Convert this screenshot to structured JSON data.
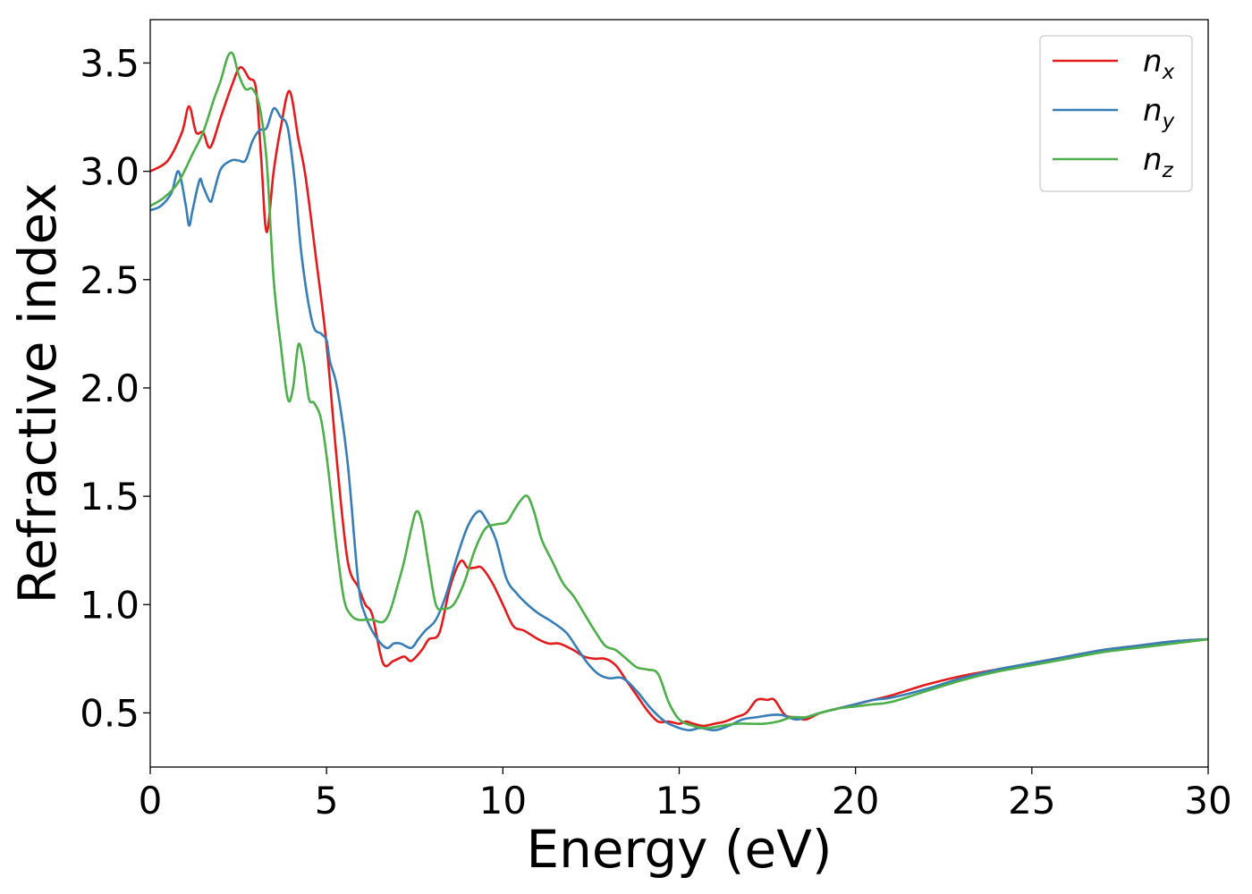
{
  "chart_data": {
    "type": "line",
    "title": "",
    "xlabel": "Energy (eV)",
    "ylabel": "Refractive index",
    "xlim": [
      0,
      30
    ],
    "ylim": [
      0.25,
      3.7
    ],
    "xticks": [
      0,
      5,
      10,
      15,
      20,
      25,
      30
    ],
    "xtick_labels": [
      "0",
      "5",
      "10",
      "15",
      "20",
      "25",
      "30"
    ],
    "yticks": [
      0.5,
      1.0,
      1.5,
      2.0,
      2.5,
      3.0,
      3.5
    ],
    "ytick_labels": [
      "0.5",
      "1.0",
      "1.5",
      "2.0",
      "2.5",
      "3.0",
      "3.5"
    ],
    "grid": false,
    "legend_position": "top-right",
    "series": [
      {
        "name": "n_x",
        "base": "n",
        "sub": "x",
        "color": "#e41a1c",
        "x": [
          0,
          0.5,
          0.9,
          1.1,
          1.3,
          1.5,
          1.7,
          2.0,
          2.3,
          2.55,
          2.8,
          3.0,
          3.15,
          3.3,
          3.5,
          3.7,
          3.95,
          4.2,
          4.4,
          4.7,
          5.0,
          5.3,
          5.6,
          5.9,
          6.1,
          6.3,
          6.6,
          6.9,
          7.2,
          7.4,
          7.7,
          7.9,
          8.2,
          8.5,
          8.8,
          9.0,
          9.2,
          9.4,
          9.7,
          10.0,
          10.3,
          10.6,
          11.0,
          11.3,
          11.6,
          12.0,
          12.3,
          12.6,
          12.9,
          13.2,
          13.5,
          13.8,
          14.1,
          14.4,
          14.7,
          15.0,
          15.2,
          15.4,
          15.7,
          16.0,
          16.3,
          16.6,
          16.9,
          17.2,
          17.5,
          17.7,
          18.0,
          18.3,
          18.6,
          19.0,
          19.5,
          20.0,
          20.5,
          21.0,
          22.0,
          23.0,
          24.0,
          25.0,
          26.0,
          27.0,
          28.0,
          29.0,
          30.0
        ],
        "y": [
          3.0,
          3.05,
          3.18,
          3.3,
          3.18,
          3.18,
          3.11,
          3.25,
          3.39,
          3.48,
          3.43,
          3.38,
          3.05,
          2.72,
          3.0,
          3.2,
          3.37,
          3.15,
          2.98,
          2.6,
          2.2,
          1.65,
          1.2,
          1.08,
          1.0,
          0.95,
          0.73,
          0.74,
          0.76,
          0.74,
          0.79,
          0.84,
          0.87,
          1.08,
          1.2,
          1.17,
          1.17,
          1.17,
          1.1,
          1.0,
          0.9,
          0.88,
          0.84,
          0.82,
          0.82,
          0.79,
          0.76,
          0.75,
          0.75,
          0.72,
          0.65,
          0.58,
          0.51,
          0.46,
          0.46,
          0.45,
          0.46,
          0.45,
          0.44,
          0.45,
          0.46,
          0.48,
          0.5,
          0.56,
          0.56,
          0.56,
          0.49,
          0.48,
          0.47,
          0.5,
          0.52,
          0.54,
          0.56,
          0.58,
          0.63,
          0.67,
          0.7,
          0.73,
          0.76,
          0.79,
          0.81,
          0.83,
          0.84
        ]
      },
      {
        "name": "n_y",
        "base": "n",
        "sub": "y",
        "color": "#377eb8",
        "x": [
          0,
          0.3,
          0.6,
          0.8,
          1.0,
          1.1,
          1.2,
          1.4,
          1.5,
          1.7,
          1.8,
          2.0,
          2.3,
          2.5,
          2.7,
          2.9,
          3.1,
          3.3,
          3.5,
          3.7,
          3.9,
          4.1,
          4.3,
          4.6,
          4.85,
          5.0,
          5.1,
          5.3,
          5.6,
          5.9,
          6.1,
          6.4,
          6.7,
          6.9,
          7.1,
          7.4,
          7.6,
          7.8,
          8.1,
          8.4,
          8.7,
          9.0,
          9.3,
          9.5,
          9.8,
          10.1,
          10.4,
          10.7,
          11.0,
          11.4,
          11.8,
          12.1,
          12.4,
          12.7,
          13.0,
          13.4,
          13.8,
          14.2,
          14.6,
          15.0,
          15.3,
          15.6,
          16.0,
          16.4,
          16.8,
          17.2,
          17.6,
          17.9,
          18.3,
          18.6,
          19.0,
          19.5,
          20.0,
          20.5,
          21.0,
          22.0,
          23.0,
          24.0,
          25.0,
          26.0,
          27.0,
          28.0,
          29.0,
          30.0
        ],
        "y": [
          2.82,
          2.84,
          2.9,
          3.0,
          2.85,
          2.75,
          2.82,
          2.96,
          2.93,
          2.86,
          2.9,
          3.01,
          3.05,
          3.05,
          3.05,
          3.14,
          3.19,
          3.2,
          3.29,
          3.25,
          3.2,
          2.95,
          2.6,
          2.3,
          2.25,
          2.22,
          2.12,
          2.0,
          1.65,
          1.1,
          0.95,
          0.85,
          0.8,
          0.82,
          0.82,
          0.8,
          0.84,
          0.88,
          0.93,
          1.05,
          1.22,
          1.36,
          1.43,
          1.4,
          1.3,
          1.12,
          1.05,
          1.0,
          0.96,
          0.92,
          0.87,
          0.8,
          0.73,
          0.68,
          0.66,
          0.66,
          0.6,
          0.52,
          0.46,
          0.43,
          0.42,
          0.43,
          0.42,
          0.44,
          0.47,
          0.48,
          0.49,
          0.49,
          0.47,
          0.48,
          0.5,
          0.52,
          0.54,
          0.56,
          0.57,
          0.61,
          0.66,
          0.7,
          0.73,
          0.76,
          0.79,
          0.81,
          0.83,
          0.84
        ]
      },
      {
        "name": "n_z",
        "base": "n",
        "sub": "z",
        "color": "#4daf4a",
        "x": [
          0,
          0.4,
          0.8,
          1.2,
          1.5,
          1.8,
          2.0,
          2.2,
          2.35,
          2.5,
          2.7,
          2.9,
          3.1,
          3.3,
          3.5,
          3.7,
          3.9,
          4.05,
          4.2,
          4.35,
          4.5,
          4.65,
          4.85,
          5.05,
          5.3,
          5.5,
          5.7,
          5.9,
          6.1,
          6.3,
          6.6,
          6.8,
          7.0,
          7.2,
          7.4,
          7.55,
          7.7,
          7.9,
          8.1,
          8.3,
          8.6,
          8.9,
          9.2,
          9.5,
          9.8,
          10.1,
          10.3,
          10.5,
          10.7,
          10.9,
          11.1,
          11.4,
          11.7,
          12.0,
          12.3,
          12.6,
          12.9,
          13.2,
          13.5,
          13.8,
          14.1,
          14.4,
          14.7,
          15.0,
          15.4,
          15.8,
          16.2,
          16.6,
          17.0,
          17.4,
          17.8,
          18.2,
          18.6,
          19.0,
          19.5,
          20.0,
          20.5,
          21.0,
          22.0,
          23.0,
          24.0,
          25.0,
          26.0,
          27.0,
          28.0,
          29.0,
          30.0
        ],
        "y": [
          2.84,
          2.88,
          2.95,
          3.08,
          3.18,
          3.33,
          3.42,
          3.53,
          3.54,
          3.45,
          3.38,
          3.38,
          3.3,
          3.05,
          2.5,
          2.2,
          1.95,
          2.0,
          2.2,
          2.12,
          1.95,
          1.93,
          1.85,
          1.62,
          1.25,
          1.02,
          0.95,
          0.93,
          0.93,
          0.93,
          0.92,
          0.97,
          1.08,
          1.2,
          1.35,
          1.43,
          1.38,
          1.18,
          1.0,
          0.98,
          1.0,
          1.1,
          1.25,
          1.35,
          1.37,
          1.38,
          1.43,
          1.48,
          1.5,
          1.42,
          1.3,
          1.2,
          1.1,
          1.04,
          0.96,
          0.88,
          0.81,
          0.79,
          0.75,
          0.71,
          0.7,
          0.68,
          0.55,
          0.47,
          0.44,
          0.43,
          0.44,
          0.45,
          0.45,
          0.45,
          0.46,
          0.48,
          0.48,
          0.5,
          0.52,
          0.53,
          0.54,
          0.55,
          0.6,
          0.65,
          0.69,
          0.72,
          0.75,
          0.78,
          0.8,
          0.82,
          0.84
        ]
      }
    ]
  }
}
